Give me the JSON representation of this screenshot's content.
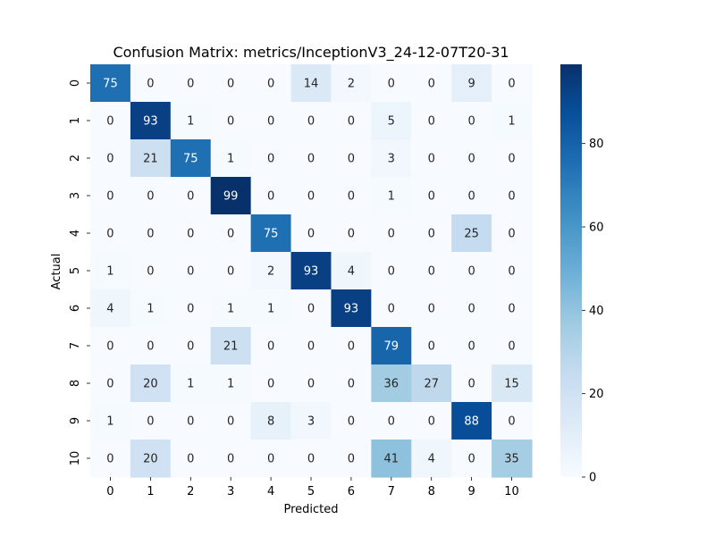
{
  "chart_data": {
    "type": "heatmap",
    "title": "Confusion Matrix: metrics/InceptionV3_24-12-07T20-31",
    "xlabel": "Predicted",
    "ylabel": "Actual",
    "x_categories": [
      "0",
      "1",
      "2",
      "3",
      "4",
      "5",
      "6",
      "7",
      "8",
      "9",
      "10"
    ],
    "y_categories": [
      "0",
      "1",
      "2",
      "3",
      "4",
      "5",
      "6",
      "7",
      "8",
      "9",
      "10"
    ],
    "matrix": [
      [
        75,
        0,
        0,
        0,
        0,
        14,
        2,
        0,
        0,
        9,
        0
      ],
      [
        0,
        93,
        1,
        0,
        0,
        0,
        0,
        5,
        0,
        0,
        1
      ],
      [
        0,
        21,
        75,
        1,
        0,
        0,
        0,
        3,
        0,
        0,
        0
      ],
      [
        0,
        0,
        0,
        99,
        0,
        0,
        0,
        1,
        0,
        0,
        0
      ],
      [
        0,
        0,
        0,
        0,
        75,
        0,
        0,
        0,
        0,
        25,
        0
      ],
      [
        1,
        0,
        0,
        0,
        2,
        93,
        4,
        0,
        0,
        0,
        0
      ],
      [
        4,
        1,
        0,
        1,
        1,
        0,
        93,
        0,
        0,
        0,
        0
      ],
      [
        0,
        0,
        0,
        21,
        0,
        0,
        0,
        79,
        0,
        0,
        0
      ],
      [
        0,
        20,
        1,
        1,
        0,
        0,
        0,
        36,
        27,
        0,
        15
      ],
      [
        1,
        0,
        0,
        0,
        8,
        3,
        0,
        0,
        0,
        88,
        0
      ],
      [
        0,
        20,
        0,
        0,
        0,
        0,
        0,
        41,
        4,
        0,
        35
      ]
    ],
    "colormap": "Blues",
    "colorbar": {
      "range": [
        0,
        99
      ],
      "ticks": [
        "0",
        "20",
        "40",
        "60",
        "80"
      ]
    },
    "grid": false
  }
}
